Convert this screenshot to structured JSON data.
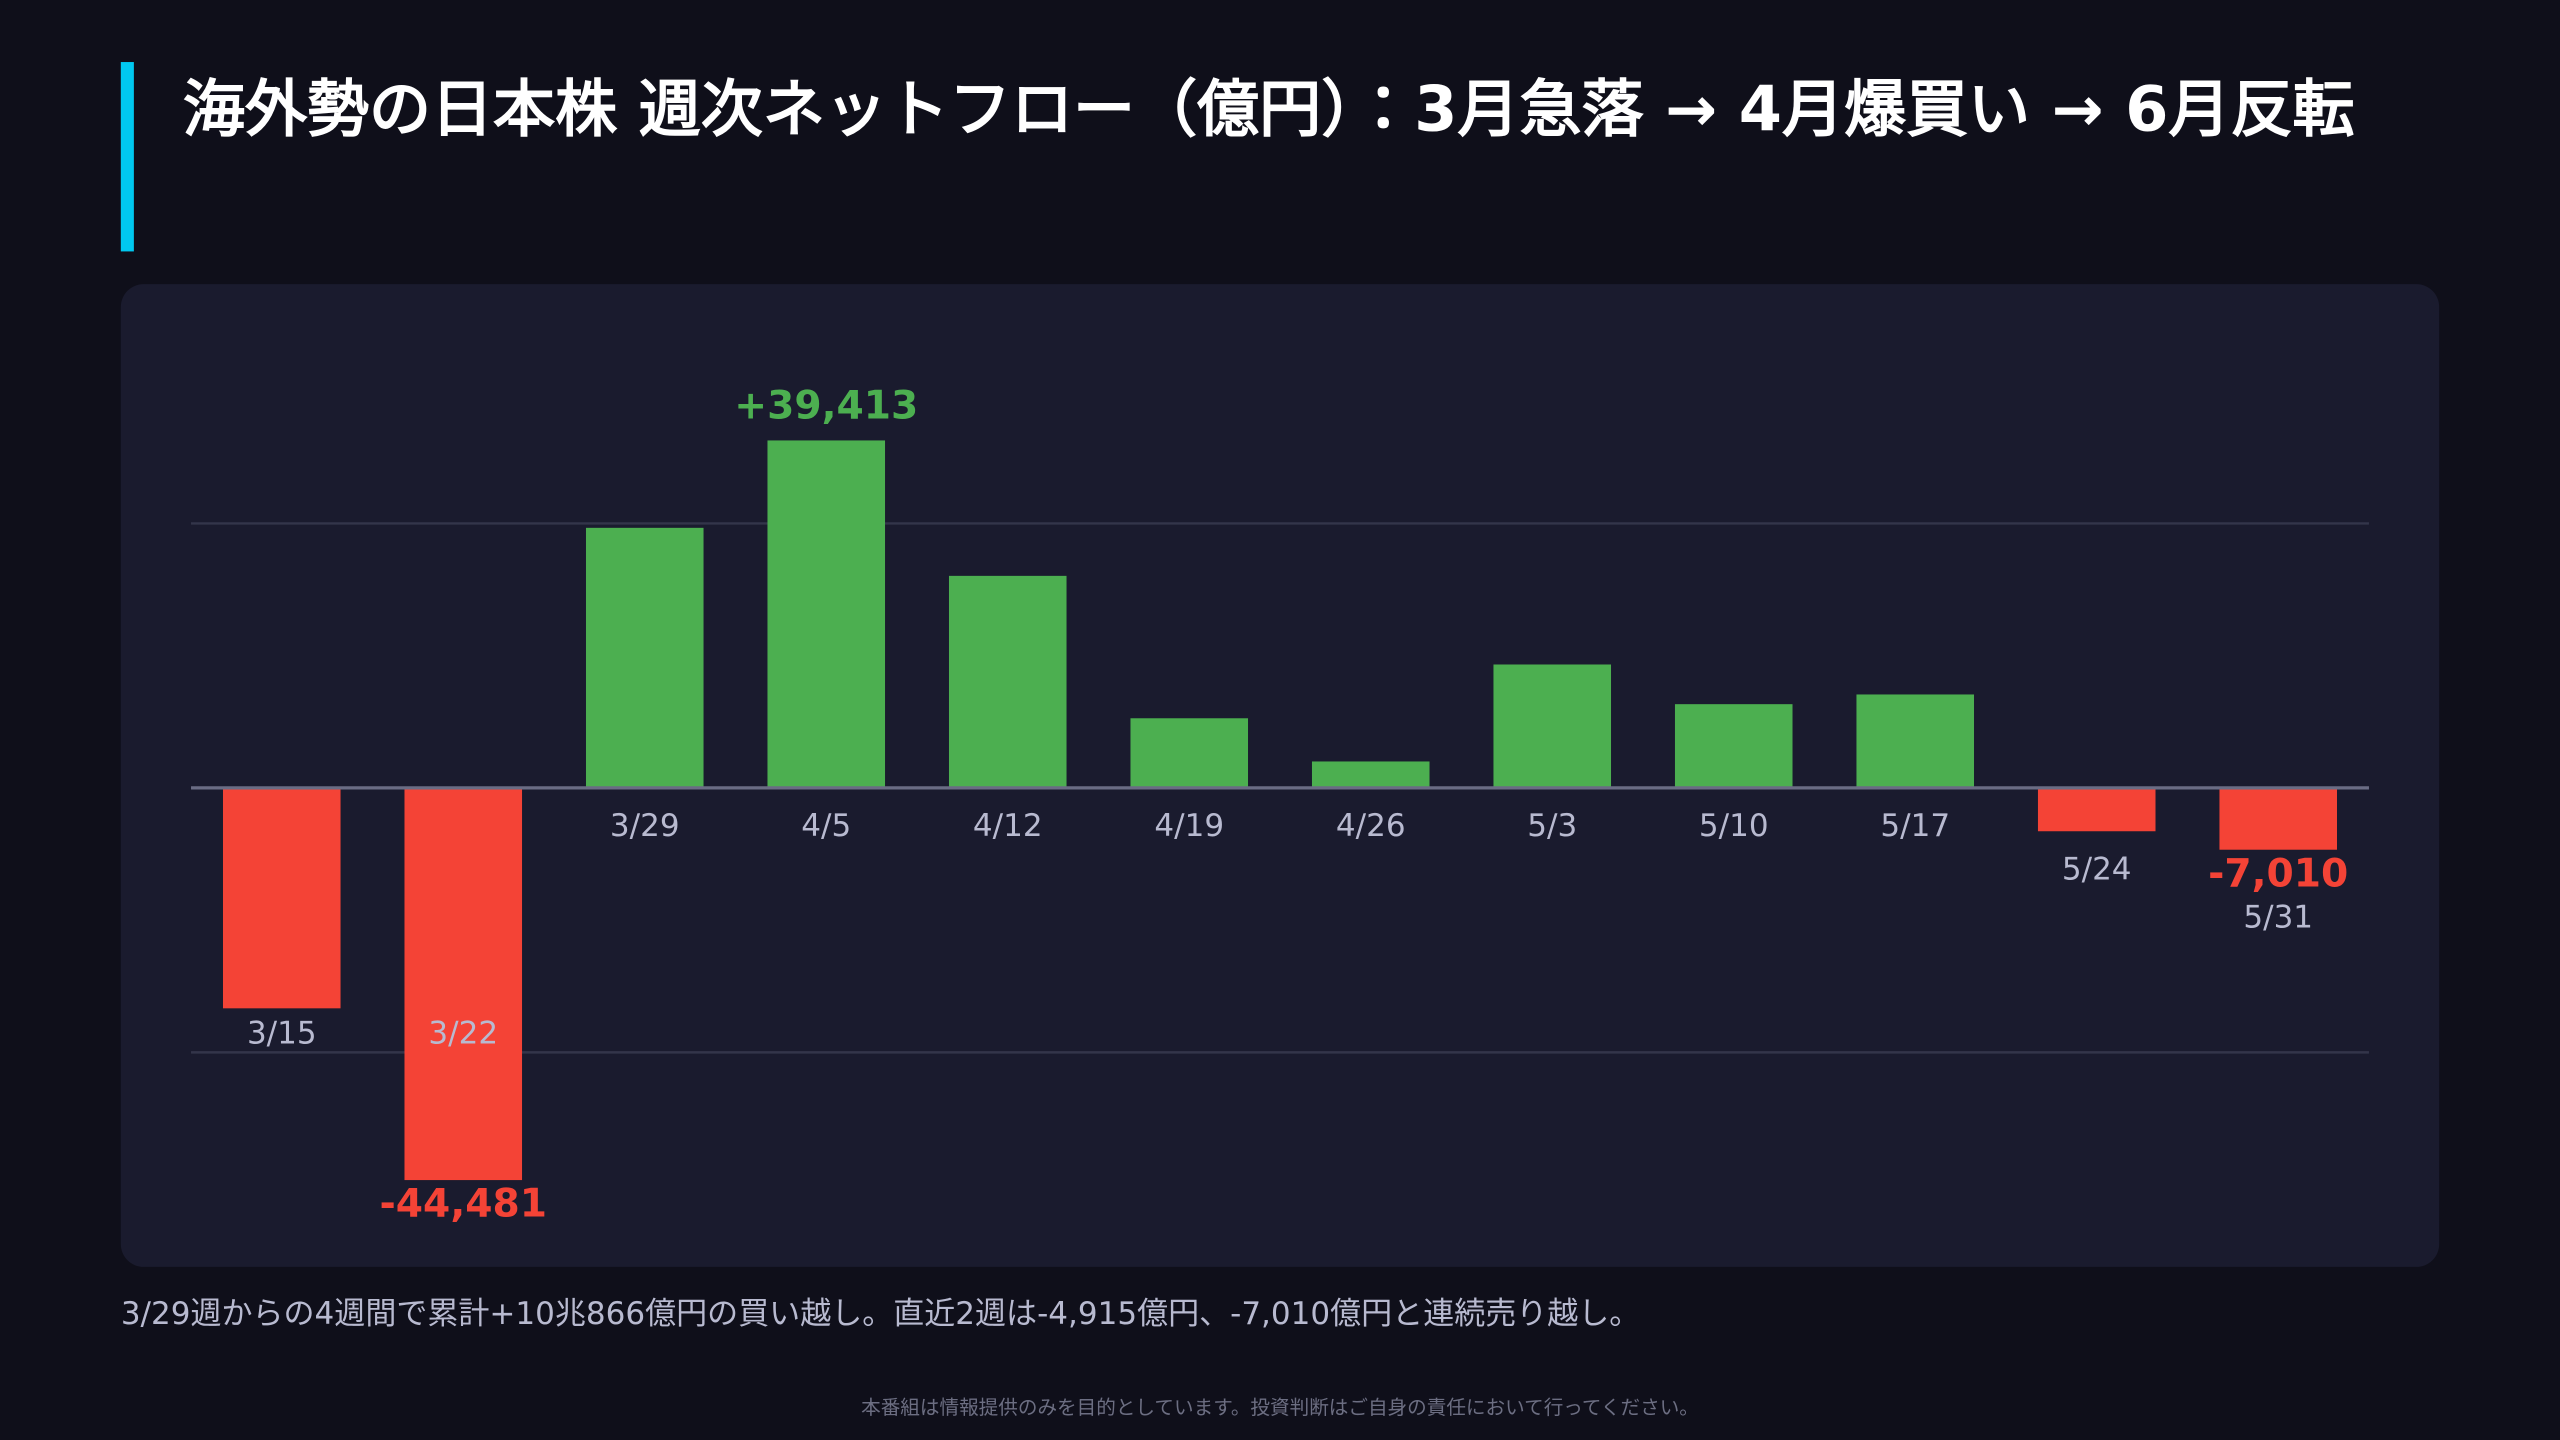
{
  "title": "海外勢の日本株 週次ネットフロー（億円）：3月急落 → 4月爆買い → 6月反転",
  "chart_data": {
    "type": "bar",
    "categories": [
      "3/15",
      "3/22",
      "3/29",
      "4/5",
      "4/12",
      "4/19",
      "4/26",
      "5/3",
      "5/10",
      "5/17",
      "5/24",
      "5/31"
    ],
    "values": [
      -25000,
      -44481,
      29500,
      39413,
      24053,
      7900,
      3000,
      14000,
      9500,
      10600,
      -4915,
      -7010
    ],
    "value_labels": [
      null,
      "-44,481",
      null,
      "+39,413",
      null,
      null,
      null,
      null,
      null,
      null,
      null,
      "-7,010"
    ],
    "positive_color": "#4caf50",
    "negative_color": "#f44336",
    "ylim": [
      -51000,
      49000
    ],
    "grid_lines": [
      -30000,
      30000
    ]
  },
  "note": "3/29週からの4週間で累計+10兆866億円の買い越し。直近2週は-4,915億円、-7,010億円と連続売り越し。",
  "disclaimer": "本番組は情報提供のみを目的としています。投資判断はご自身の責任において行ってください。"
}
